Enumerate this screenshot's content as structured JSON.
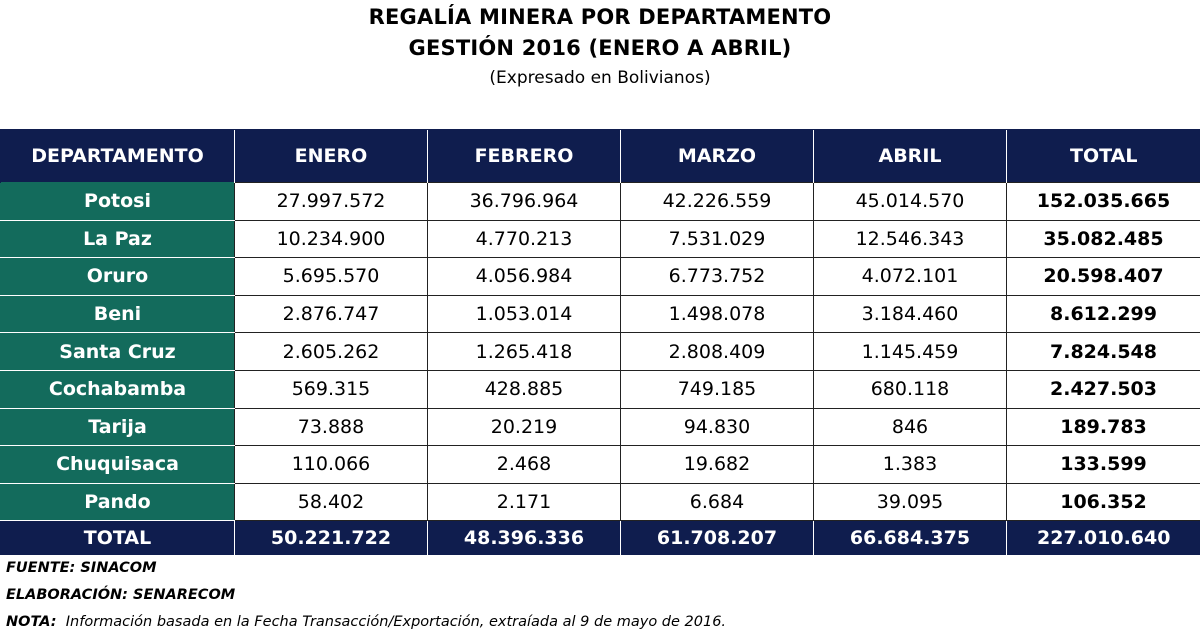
{
  "header": {
    "title_line_1": "REGALÍA MINERA POR DEPARTAMENTO",
    "title_line_2": "GESTIÓN 2016 (ENERO A ABRIL)",
    "subtitle": "(Expresado en Bolivianos)"
  },
  "table": {
    "columns": [
      "DEPARTAMENTO",
      "ENERO",
      "FEBRERO",
      "MARZO",
      "ABRIL",
      "TOTAL"
    ],
    "rows": [
      {
        "departamento": "Potosi",
        "enero": "27.997.572",
        "febrero": "36.796.964",
        "marzo": "42.226.559",
        "abril": "45.014.570",
        "total": "152.035.665"
      },
      {
        "departamento": "La Paz",
        "enero": "10.234.900",
        "febrero": "4.770.213",
        "marzo": "7.531.029",
        "abril": "12.546.343",
        "total": "35.082.485"
      },
      {
        "departamento": "Oruro",
        "enero": "5.695.570",
        "febrero": "4.056.984",
        "marzo": "6.773.752",
        "abril": "4.072.101",
        "total": "20.598.407"
      },
      {
        "departamento": "Beni",
        "enero": "2.876.747",
        "febrero": "1.053.014",
        "marzo": "1.498.078",
        "abril": "3.184.460",
        "total": "8.612.299"
      },
      {
        "departamento": "Santa Cruz",
        "enero": "2.605.262",
        "febrero": "1.265.418",
        "marzo": "2.808.409",
        "abril": "1.145.459",
        "total": "7.824.548"
      },
      {
        "departamento": "Cochabamba",
        "enero": "569.315",
        "febrero": "428.885",
        "marzo": "749.185",
        "abril": "680.118",
        "total": "2.427.503"
      },
      {
        "departamento": "Tarija",
        "enero": "73.888",
        "febrero": "20.219",
        "marzo": "94.830",
        "abril": "846",
        "total": "189.783"
      },
      {
        "departamento": "Chuquisaca",
        "enero": "110.066",
        "febrero": "2.468",
        "marzo": "19.682",
        "abril": "1.383",
        "total": "133.599"
      },
      {
        "departamento": "Pando",
        "enero": "58.402",
        "febrero": "2.171",
        "marzo": "6.684",
        "abril": "39.095",
        "total": "106.352"
      }
    ],
    "totals": {
      "label": "TOTAL",
      "enero": "50.221.722",
      "febrero": "48.396.336",
      "marzo": "61.708.207",
      "abril": "66.684.375",
      "total": "227.010.640"
    }
  },
  "footnotes": {
    "fuente": "FUENTE: SINACOM",
    "elaboracion": "ELABORACIÓN: SENARECOM",
    "nota_label": "NOTA:",
    "nota_text": "Información basada en la Fecha  Transacción/Exportación, extraíada al 9 de mayo de 2016."
  },
  "colors": {
    "header_bg": "#0f1d4e",
    "department_bg": "#136b5c",
    "header_text": "#ffffff"
  }
}
